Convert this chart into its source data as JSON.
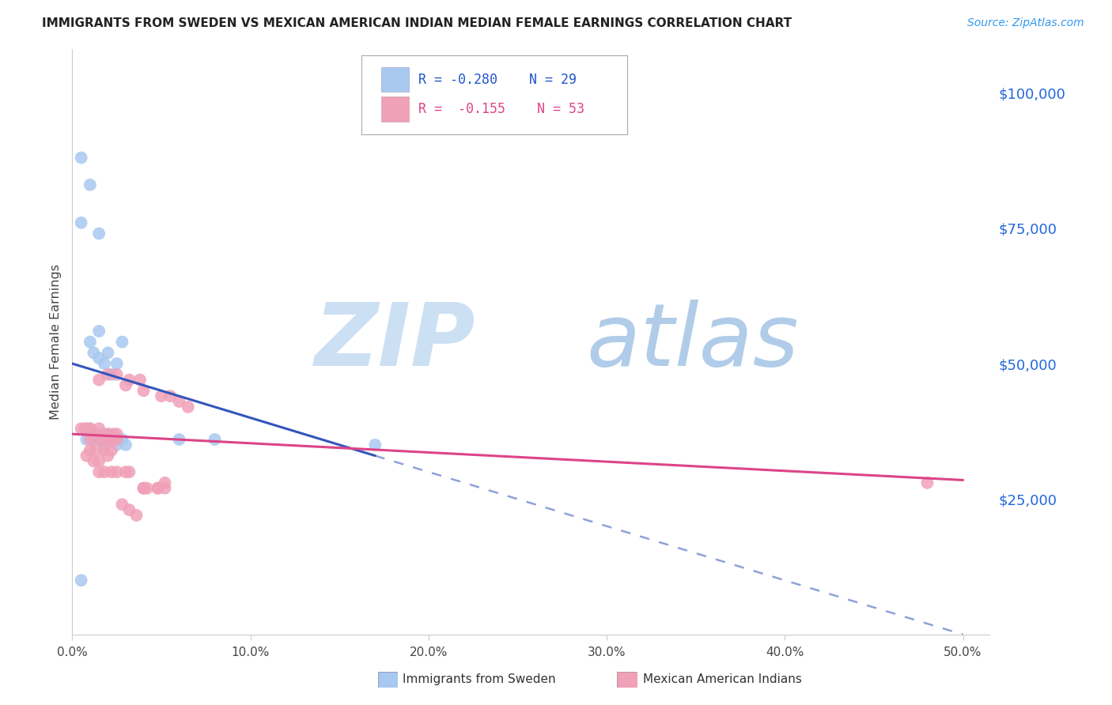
{
  "title": "IMMIGRANTS FROM SWEDEN VS MEXICAN AMERICAN INDIAN MEDIAN FEMALE EARNINGS CORRELATION CHART",
  "source": "Source: ZipAtlas.com",
  "ylabel": "Median Female Earnings",
  "background_color": "#ffffff",
  "grid_color": "#d8d8d8",
  "legend_r1": "R = -0.280",
  "legend_n1": "N = 29",
  "legend_r2": "R = -0.155",
  "legend_n2": "N = 53",
  "ytick_labels": [
    "$25,000",
    "$50,000",
    "$75,000",
    "$100,000"
  ],
  "ytick_values": [
    25000,
    50000,
    75000,
    100000
  ],
  "ylim": [
    0,
    108000
  ],
  "xlim": [
    0.0,
    0.515
  ],
  "xtick_positions": [
    0.0,
    0.1,
    0.2,
    0.3,
    0.4,
    0.5
  ],
  "xtick_labels": [
    "0.0%",
    "10.0%",
    "20.0%",
    "30.0%",
    "40.0%",
    "50.0%"
  ],
  "blue_color": "#a8c8f0",
  "pink_color": "#f0a0b8",
  "blue_line_color": "#3355bb",
  "pink_line_color": "#dd4488",
  "blue_scatter_x": [
    0.005,
    0.01,
    0.005,
    0.015,
    0.01,
    0.012,
    0.015,
    0.015,
    0.018,
    0.02,
    0.022,
    0.025,
    0.028,
    0.01,
    0.012,
    0.015,
    0.018,
    0.02,
    0.022,
    0.025,
    0.028,
    0.03,
    0.005,
    0.008,
    0.012,
    0.018,
    0.06,
    0.08,
    0.17
  ],
  "blue_scatter_y": [
    88000,
    83000,
    76000,
    74000,
    54000,
    52000,
    56000,
    51000,
    50000,
    52000,
    48000,
    50000,
    54000,
    38000,
    37000,
    36000,
    36000,
    37000,
    36000,
    35000,
    36000,
    35000,
    10000,
    36000,
    36000,
    35000,
    36000,
    36000,
    35000
  ],
  "pink_scatter_x": [
    0.005,
    0.007,
    0.008,
    0.01,
    0.01,
    0.012,
    0.013,
    0.015,
    0.015,
    0.017,
    0.018,
    0.02,
    0.02,
    0.022,
    0.023,
    0.025,
    0.025,
    0.01,
    0.013,
    0.018,
    0.02,
    0.022,
    0.015,
    0.02,
    0.025,
    0.03,
    0.032,
    0.038,
    0.04,
    0.05,
    0.055,
    0.06,
    0.065,
    0.008,
    0.012,
    0.015,
    0.015,
    0.018,
    0.022,
    0.025,
    0.03,
    0.032,
    0.04,
    0.042,
    0.048,
    0.052,
    0.04,
    0.048,
    0.052,
    0.48,
    0.028,
    0.032,
    0.036
  ],
  "pink_scatter_y": [
    38000,
    38000,
    38000,
    38000,
    36000,
    37000,
    37000,
    38000,
    36000,
    37000,
    36000,
    36000,
    37000,
    36000,
    37000,
    37000,
    36000,
    34000,
    34000,
    34000,
    33000,
    34000,
    47000,
    48000,
    48000,
    46000,
    47000,
    47000,
    45000,
    44000,
    44000,
    43000,
    42000,
    33000,
    32000,
    32000,
    30000,
    30000,
    30000,
    30000,
    30000,
    30000,
    27000,
    27000,
    27000,
    27000,
    27000,
    27000,
    28000,
    28000,
    24000,
    23000,
    22000
  ]
}
